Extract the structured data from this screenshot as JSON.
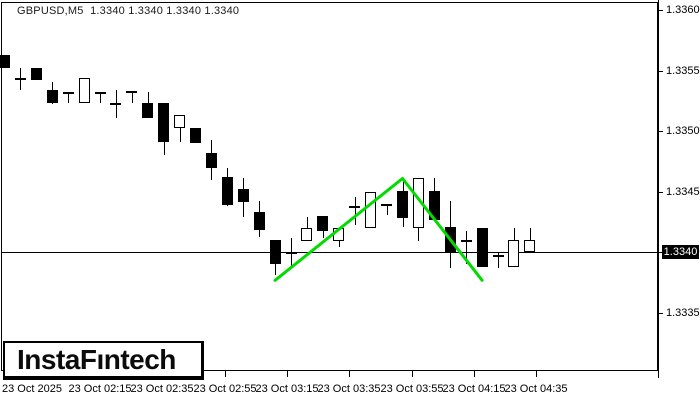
{
  "header": {
    "title": "GBPUSD,M5  1.3340 1.3340 1.3340 1.3340"
  },
  "logo": {
    "text": "InstaFıntech"
  },
  "price_tag": "1.3340",
  "chart_data": {
    "type": "candlestick",
    "symbol": "GBPUSD",
    "timeframe": "M5",
    "title": "GBPUSD,M5  1.3340 1.3340 1.3340 1.3340",
    "grid": false,
    "colors": {
      "bull": "#ffffff",
      "bear": "#000000",
      "outline": "#000000",
      "background": "#ffffff",
      "zigzag": "#00dc00",
      "price_tag_bg": "#000000",
      "price_tag_text": "#ffffff"
    },
    "y_axis": {
      "ticks": [
        "1.3360",
        "1.3355",
        "1.3350",
        "1.3345",
        "1.3340",
        "1.3335"
      ],
      "current_price": "1.3340",
      "ylim": [
        1.33325,
        1.33608
      ]
    },
    "x_axis": {
      "labels": [
        "23 Oct 2025",
        "23 Oct 02:15",
        "23 Oct 02:35",
        "23 Oct 02:55",
        "23 Oct 03:15",
        "23 Oct 03:35",
        "23 Oct 03:55",
        "23 Oct 04:15",
        "23 Oct 04:35"
      ]
    },
    "candles": [
      {
        "o": 1.33563,
        "h": 1.33563,
        "l": 1.33552,
        "c": 1.33552
      },
      {
        "o": 1.33544,
        "h": 1.33552,
        "l": 1.33534,
        "c": 1.33544
      },
      {
        "o": 1.33552,
        "h": 1.33552,
        "l": 1.33542,
        "c": 1.33542
      },
      {
        "o": 1.33534,
        "h": 1.33541,
        "l": 1.33523,
        "c": 1.33523
      },
      {
        "o": 1.33532,
        "h": 1.33532,
        "l": 1.33523,
        "c": 1.33532
      },
      {
        "o": 1.33523,
        "h": 1.33544,
        "l": 1.33523,
        "c": 1.33544
      },
      {
        "o": 1.33532,
        "h": 1.33532,
        "l": 1.33523,
        "c": 1.33532
      },
      {
        "o": 1.33523,
        "h": 1.33534,
        "l": 1.33511,
        "c": 1.33523
      },
      {
        "o": 1.33533,
        "h": 1.33533,
        "l": 1.33523,
        "c": 1.33533
      },
      {
        "o": 1.33523,
        "h": 1.33532,
        "l": 1.33511,
        "c": 1.33511
      },
      {
        "o": 1.33523,
        "h": 1.33523,
        "l": 1.3348,
        "c": 1.33491
      },
      {
        "o": 1.33502,
        "h": 1.33513,
        "l": 1.33491,
        "c": 1.33513
      },
      {
        "o": 1.33503,
        "h": 1.33503,
        "l": 1.33491,
        "c": 1.33491
      },
      {
        "o": 1.33482,
        "h": 1.33493,
        "l": 1.3346,
        "c": 1.3347
      },
      {
        "o": 1.33462,
        "h": 1.3347,
        "l": 1.33439,
        "c": 1.33439
      },
      {
        "o": 1.33452,
        "h": 1.33461,
        "l": 1.33429,
        "c": 1.33441
      },
      {
        "o": 1.33433,
        "h": 1.33442,
        "l": 1.33412,
        "c": 1.33418
      },
      {
        "o": 1.3341,
        "h": 1.3341,
        "l": 1.33381,
        "c": 1.3339
      },
      {
        "o": 1.334,
        "h": 1.33412,
        "l": 1.33388,
        "c": 1.334
      },
      {
        "o": 1.33409,
        "h": 1.33429,
        "l": 1.33409,
        "c": 1.3342
      },
      {
        "o": 1.3343,
        "h": 1.3343,
        "l": 1.33412,
        "c": 1.33418
      },
      {
        "o": 1.33409,
        "h": 1.3342,
        "l": 1.33404,
        "c": 1.3342
      },
      {
        "o": 1.33438,
        "h": 1.33446,
        "l": 1.33423,
        "c": 1.33438
      },
      {
        "o": 1.3342,
        "h": 1.3345,
        "l": 1.3342,
        "c": 1.3345
      },
      {
        "o": 1.3344,
        "h": 1.3344,
        "l": 1.33431,
        "c": 1.3344
      },
      {
        "o": 1.33451,
        "h": 1.3346,
        "l": 1.33421,
        "c": 1.33429
      },
      {
        "o": 1.3342,
        "h": 1.33461,
        "l": 1.33409,
        "c": 1.33461
      },
      {
        "o": 1.33451,
        "h": 1.33461,
        "l": 1.33427,
        "c": 1.33427
      },
      {
        "o": 1.33421,
        "h": 1.33442,
        "l": 1.33387,
        "c": 1.334
      },
      {
        "o": 1.3341,
        "h": 1.33418,
        "l": 1.33391,
        "c": 1.3341
      },
      {
        "o": 1.3342,
        "h": 1.3342,
        "l": 1.33388,
        "c": 1.33388
      },
      {
        "o": 1.33398,
        "h": 1.334,
        "l": 1.33387,
        "c": 1.33398
      },
      {
        "o": 1.33388,
        "h": 1.3342,
        "l": 1.33388,
        "c": 1.3341
      },
      {
        "o": 1.334,
        "h": 1.3342,
        "l": 1.334,
        "c": 1.3341
      }
    ],
    "overlay": {
      "type": "zigzag",
      "color": "#00dc00",
      "points": [
        {
          "i": 17,
          "price": 1.33377
        },
        {
          "i": 25,
          "price": 1.33461
        },
        {
          "i": 30,
          "price": 1.33377
        }
      ]
    }
  }
}
